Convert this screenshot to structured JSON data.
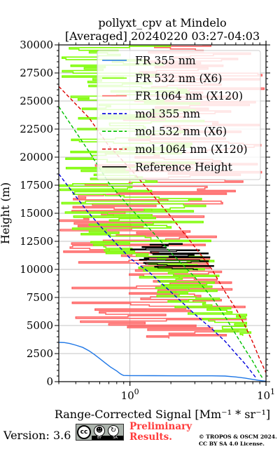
{
  "chart_data": {
    "type": "line",
    "title": [
      "pollyxt_cpv at Mindelo",
      "[Averaged] 20240220 03:27-04:03"
    ],
    "xlabel": "Range-Corrected Signal [Mm⁻¹ * sr⁻¹]",
    "ylabel": "Height (m)",
    "x_scale": "log",
    "xlim": [
      0.3,
      10
    ],
    "ylim": [
      0,
      30000
    ],
    "grid": true,
    "legend_position": "top-right",
    "x_tick_labels": [
      {
        "value": 1,
        "base": "10",
        "exp": "0"
      },
      {
        "value": 10,
        "base": "10",
        "exp": "1"
      }
    ],
    "y_ticks": [
      0,
      2500,
      5000,
      7500,
      10000,
      12500,
      15000,
      17500,
      20000,
      22500,
      25000,
      27500,
      30000
    ],
    "series": [
      {
        "name": "FR 355 nm",
        "color": "#1f77e6",
        "style": "solid",
        "points": [
          [
            0.3,
            3500
          ],
          [
            0.33,
            3480
          ],
          [
            0.36,
            3400
          ],
          [
            0.4,
            3250
          ],
          [
            0.45,
            3050
          ],
          [
            0.5,
            2750
          ],
          [
            0.55,
            2400
          ],
          [
            0.6,
            2050
          ],
          [
            0.66,
            1650
          ],
          [
            0.72,
            1300
          ],
          [
            0.8,
            950
          ],
          [
            0.85,
            700
          ],
          [
            0.88,
            600
          ],
          [
            0.9,
            550
          ],
          [
            1.0,
            540
          ],
          [
            1.5,
            530
          ],
          [
            2.5,
            520
          ],
          [
            4,
            520
          ],
          [
            5,
            500
          ],
          [
            6,
            420
          ],
          [
            7,
            320
          ],
          [
            8,
            200
          ],
          [
            8.8,
            120
          ],
          [
            9.5,
            60
          ],
          [
            10,
            30
          ]
        ]
      },
      {
        "name": "FR 532 nm (X6)",
        "color": "#7cfc00",
        "style": "solid",
        "noisy": true,
        "band": [
          [
            30000,
            0.3,
            2.5
          ],
          [
            27500,
            0.3,
            2.0
          ],
          [
            25000,
            0.3,
            3.5
          ],
          [
            22500,
            0.3,
            4.0
          ],
          [
            20000,
            0.3,
            3.0
          ],
          [
            17500,
            0.3,
            3.8
          ],
          [
            15000,
            0.32,
            3.6
          ],
          [
            12500,
            0.4,
            4.5
          ],
          [
            10000,
            0.7,
            5.5
          ],
          [
            7500,
            1.6,
            6.5
          ],
          [
            5000,
            3.0,
            8.0
          ],
          [
            4000,
            4.0,
            10.0
          ]
        ]
      },
      {
        "name": "FR 1064 nm (X120)",
        "color": "#ff6666",
        "style": "solid",
        "noisy": true,
        "band": [
          [
            30000,
            1.2,
            10.0
          ],
          [
            25000,
            0.9,
            10.0
          ],
          [
            20000,
            0.6,
            10.0
          ],
          [
            17000,
            0.4,
            9.0
          ],
          [
            15000,
            0.3,
            7.0
          ],
          [
            12500,
            0.3,
            5.0
          ],
          [
            10000,
            0.3,
            5.0
          ],
          [
            7500,
            0.3,
            6.5
          ],
          [
            5000,
            0.4,
            8.5
          ],
          [
            3800,
            1.0,
            7.0
          ]
        ]
      },
      {
        "name": "mol 355 nm",
        "color": "#0000dd",
        "style": "dashed",
        "points": [
          [
            0.3,
            18500
          ],
          [
            0.4,
            16500
          ],
          [
            0.5,
            15000
          ],
          [
            0.7,
            13000
          ],
          [
            1.0,
            11000
          ],
          [
            1.4,
            9700
          ],
          [
            2.0,
            8000
          ],
          [
            3.0,
            6000
          ],
          [
            4.0,
            4700
          ],
          [
            5.0,
            3600
          ],
          [
            6.0,
            2500
          ],
          [
            7.0,
            1600
          ],
          [
            8.0,
            700
          ],
          [
            8.5,
            300
          ]
        ]
      },
      {
        "name": "mol 532 nm (X6)",
        "color": "#00c000",
        "style": "dashed",
        "points": [
          [
            0.3,
            24500
          ],
          [
            0.5,
            20500
          ],
          [
            0.7,
            17700
          ],
          [
            1.0,
            15500
          ],
          [
            1.5,
            13200
          ],
          [
            2.0,
            11500
          ],
          [
            3.0,
            9300
          ],
          [
            4.0,
            7500
          ],
          [
            5.0,
            5800
          ],
          [
            6.0,
            4200
          ],
          [
            7.0,
            2900
          ],
          [
            8.0,
            1800
          ],
          [
            9.0,
            700
          ],
          [
            9.5,
            250
          ]
        ]
      },
      {
        "name": "mol 1064 nm (X120)",
        "color": "#dd0000",
        "style": "dashed",
        "points": [
          [
            0.3,
            26300
          ],
          [
            0.5,
            23500
          ],
          [
            0.7,
            21000
          ],
          [
            1.0,
            19000
          ],
          [
            1.5,
            16500
          ],
          [
            2.0,
            14700
          ],
          [
            3.0,
            12000
          ],
          [
            4.0,
            10000
          ],
          [
            5.0,
            8000
          ],
          [
            6.0,
            6500
          ],
          [
            7.0,
            5000
          ],
          [
            8.0,
            3500
          ],
          [
            9.0,
            2000
          ],
          [
            10.0,
            800
          ]
        ]
      },
      {
        "name": "Reference Height",
        "color": "#000000",
        "style": "solid",
        "noisy": true,
        "band": [
          [
            12300,
            1.4,
            3.5
          ],
          [
            11800,
            1.0,
            3.0
          ],
          [
            11000,
            1.1,
            5.0
          ],
          [
            10400,
            1.3,
            4.0
          ],
          [
            9900,
            1.8,
            4.5
          ]
        ]
      }
    ]
  },
  "footer": {
    "version": "Version: 3.6",
    "license_badge": {
      "cc": "cc",
      "by": "BY",
      "sa": "SA"
    },
    "preliminary_line1": "Preliminary",
    "preliminary_line2": "Results.",
    "copyright_line1": "© TROPOS & OSCM 2024.",
    "copyright_line2": "CC BY SA 4.0 License."
  }
}
